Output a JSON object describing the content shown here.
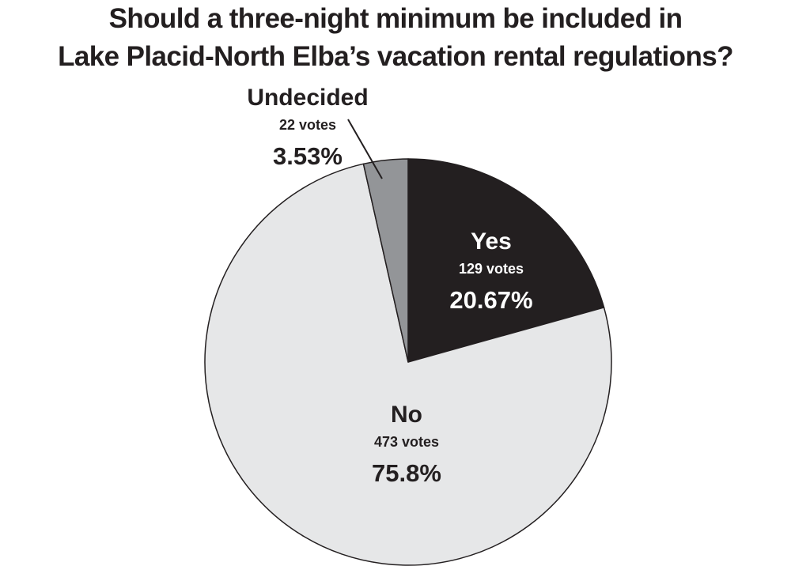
{
  "chart_data": {
    "type": "pie",
    "title": [
      "Should a three-night minimum be included in",
      "Lake Placid-North Elba’s vacation rental regulations?"
    ],
    "slices": [
      {
        "name": "Yes",
        "votes_label": "129 votes",
        "votes": 129,
        "percent_label": "20.67%",
        "percent": 20.67,
        "color": "#231f20",
        "text_color": "#ffffff"
      },
      {
        "name": "No",
        "votes_label": "473 votes",
        "votes": 473,
        "percent_label": "75.8%",
        "percent": 75.8,
        "color": "#e6e7e8",
        "text_color": "#231f20"
      },
      {
        "name": "Undecided",
        "votes_label": "22 votes",
        "votes": 22,
        "percent_label": "3.53%",
        "percent": 3.53,
        "color": "#939598",
        "text_color": "#231f20"
      }
    ],
    "start_angle": "12 o'clock",
    "direction": "clockwise",
    "outline_color": "#231f20"
  }
}
